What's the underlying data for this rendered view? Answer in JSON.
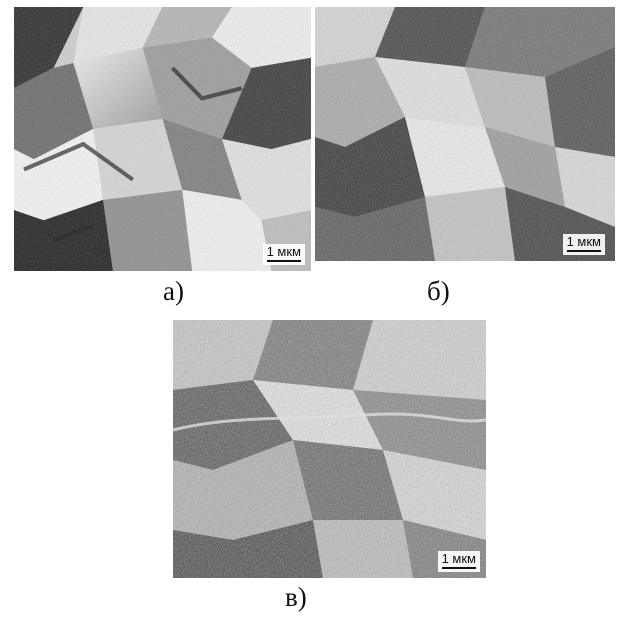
{
  "panels": [
    {
      "caption": "а)",
      "scale_label": "1 мкм"
    },
    {
      "caption": "б)",
      "scale_label": "1 мкм"
    },
    {
      "caption": "в)",
      "scale_label": "1 мкм"
    }
  ]
}
